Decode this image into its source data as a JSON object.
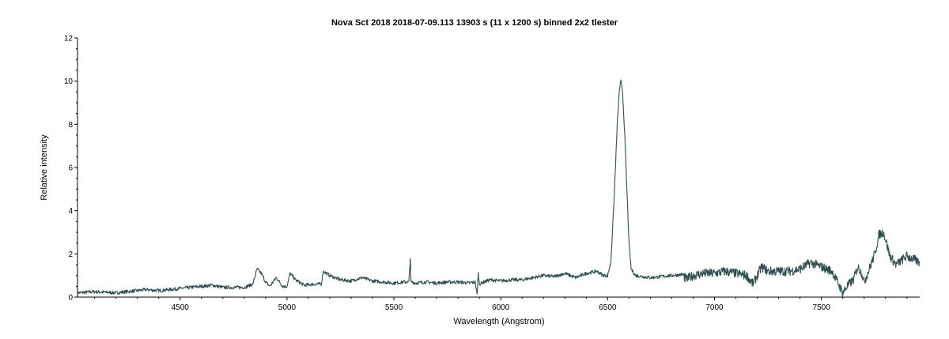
{
  "chart_data": {
    "type": "line",
    "title": "Nova Sct 2018   2018-07-09.113   13903 s (11 x 1200 s)  binned 2x2  tlester",
    "xlabel": "Wavelength (Angstrom)",
    "ylabel": "Relative intensity",
    "xlim": [
      4020,
      7960
    ],
    "ylim": [
      0,
      12
    ],
    "x_ticks": [
      4500,
      5000,
      5500,
      6000,
      6500,
      7000,
      7500
    ],
    "y_ticks": [
      0,
      2,
      4,
      6,
      8,
      10,
      12
    ],
    "grid": false,
    "legend": "none",
    "line_color": "#2f4f4f",
    "series": [
      {
        "x": [
          4020,
          4100,
          4200,
          4300,
          4340,
          4400,
          4500,
          4600,
          4650,
          4700,
          4800,
          4840,
          4860,
          4880,
          4900,
          4920,
          4950,
          4980,
          5000,
          5015,
          5040,
          5080,
          5120,
          5160,
          5170,
          5200,
          5250,
          5300,
          5350,
          5400,
          5450,
          5500,
          5550,
          5570,
          5577,
          5580,
          5600,
          5650,
          5700,
          5750,
          5800,
          5850,
          5880,
          5889,
          5895,
          5900,
          5920,
          5950,
          6000,
          6050,
          6100,
          6150,
          6200,
          6250,
          6300,
          6350,
          6400,
          6450,
          6480,
          6500,
          6515,
          6530,
          6545,
          6555,
          6562,
          6570,
          6580,
          6590,
          6600,
          6610,
          6630,
          6700,
          6800,
          6850,
          6870,
          6880,
          6900,
          6950,
          7000,
          7050,
          7100,
          7150,
          7180,
          7200,
          7220,
          7250,
          7300,
          7350,
          7400,
          7450,
          7500,
          7550,
          7580,
          7600,
          7620,
          7650,
          7670,
          7690,
          7700,
          7720,
          7750,
          7770,
          7790,
          7800,
          7820,
          7850,
          7900,
          7960
        ],
        "y": [
          0.2,
          0.25,
          0.2,
          0.3,
          0.35,
          0.3,
          0.4,
          0.5,
          0.55,
          0.45,
          0.45,
          0.6,
          1.3,
          1.1,
          0.7,
          0.5,
          0.9,
          0.5,
          0.5,
          1.1,
          0.8,
          0.55,
          0.6,
          0.6,
          1.2,
          1.0,
          0.8,
          0.75,
          0.9,
          0.75,
          0.7,
          0.65,
          0.7,
          0.7,
          1.8,
          0.7,
          0.65,
          0.7,
          0.65,
          0.7,
          0.7,
          0.65,
          0.7,
          0.1,
          1.1,
          0.6,
          0.7,
          0.8,
          0.75,
          0.8,
          0.8,
          0.9,
          1.0,
          0.95,
          1.1,
          0.9,
          1.1,
          1.2,
          1.0,
          1.0,
          1.6,
          4.5,
          8.0,
          9.6,
          10.0,
          9.5,
          7.5,
          5.0,
          2.5,
          1.3,
          1.0,
          0.9,
          1.0,
          1.05,
          0.8,
          0.9,
          1.0,
          1.1,
          1.1,
          1.2,
          1.1,
          1.0,
          0.6,
          1.0,
          1.4,
          1.2,
          1.2,
          1.2,
          1.3,
          1.6,
          1.4,
          1.2,
          0.6,
          0.2,
          0.5,
          0.8,
          1.4,
          1.1,
          0.7,
          1.2,
          2.0,
          2.9,
          3.0,
          2.7,
          1.9,
          1.5,
          1.9,
          1.6
        ]
      }
    ]
  }
}
